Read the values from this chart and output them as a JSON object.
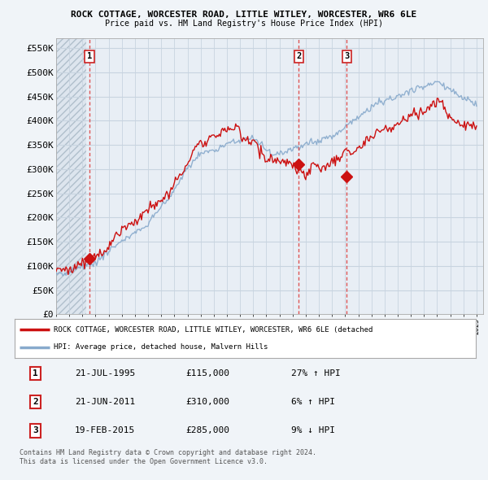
{
  "title": "ROCK COTTAGE, WORCESTER ROAD, LITTLE WITLEY, WORCESTER, WR6 6LE",
  "subtitle": "Price paid vs. HM Land Registry's House Price Index (HPI)",
  "legend_line1": "ROCK COTTAGE, WORCESTER ROAD, LITTLE WITLEY, WORCESTER, WR6 6LE (detached",
  "legend_line2": "HPI: Average price, detached house, Malvern Hills",
  "footer1": "Contains HM Land Registry data © Crown copyright and database right 2024.",
  "footer2": "This data is licensed under the Open Government Licence v3.0.",
  "ylim": [
    0,
    570000
  ],
  "yticks": [
    0,
    50000,
    100000,
    150000,
    200000,
    250000,
    300000,
    350000,
    400000,
    450000,
    500000,
    550000
  ],
  "ytick_labels": [
    "£0",
    "£50K",
    "£100K",
    "£150K",
    "£200K",
    "£250K",
    "£300K",
    "£350K",
    "£400K",
    "£450K",
    "£500K",
    "£550K"
  ],
  "xlim_start": 1993.0,
  "xlim_end": 2025.5,
  "hatch_end": 1995.3,
  "background_color": "#f0f4f8",
  "plot_bg_color": "#e8eef5",
  "hatch_bg_color": "#dde5ee",
  "grid_color": "#c8d4e0",
  "hpi_color": "#88aacc",
  "price_color": "#cc1111",
  "dashed_color": "#dd4444",
  "sale_points": [
    {
      "date": 1995.55,
      "price": 115000,
      "label": "1"
    },
    {
      "date": 2011.47,
      "price": 310000,
      "label": "2"
    },
    {
      "date": 2015.12,
      "price": 285000,
      "label": "3"
    }
  ],
  "sale_vlines": [
    1995.55,
    2011.47,
    2015.12
  ],
  "table_rows": [
    [
      "1",
      "21-JUL-1995",
      "£115,000",
      "27% ↑ HPI"
    ],
    [
      "2",
      "21-JUN-2011",
      "£310,000",
      "6% ↑ HPI"
    ],
    [
      "3",
      "19-FEB-2015",
      "£285,000",
      "9% ↓ HPI"
    ]
  ]
}
